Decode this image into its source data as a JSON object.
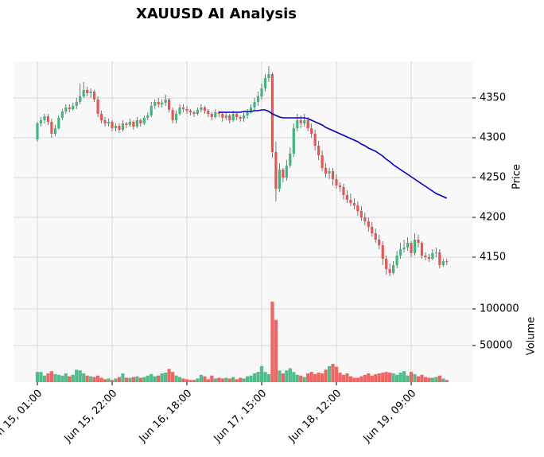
{
  "chart_data": {
    "type": "candlestick",
    "title": "XAUUSD AI Analysis",
    "ylabel": "Price",
    "volume_label": "Volume",
    "ylim": [
      4108,
      4396
    ],
    "yticks": [
      4150,
      4200,
      4250,
      4300,
      4350
    ],
    "volume_ylim": [
      0,
      125000
    ],
    "volume_yticks": [
      50000,
      100000
    ],
    "xlim": [
      -6.7,
      122.2
    ],
    "xticks": [
      {
        "value": 0,
        "label": "Jun 15, 01:00"
      },
      {
        "value": 21,
        "label": "Jun 15, 22:00"
      },
      {
        "value": 42,
        "label": "Jun 16, 18:00"
      },
      {
        "value": 63,
        "label": "Jun 17, 15:00"
      },
      {
        "value": 84,
        "label": "Jun 18, 12:00"
      },
      {
        "value": 105,
        "label": "Jun 19, 09:00"
      }
    ],
    "grid": true,
    "up_color": "#3cb77e",
    "down_color": "#ef5350",
    "open": [
      4298,
      4318,
      4322,
      4327,
      4320,
      4305,
      4312,
      4325,
      4333,
      4338,
      4336,
      4340,
      4345,
      4352,
      4360,
      4356,
      4358,
      4348,
      4330,
      4322,
      4318,
      4320,
      4312,
      4315,
      4310,
      4318,
      4316,
      4320,
      4314,
      4322,
      4318,
      4325,
      4328,
      4340,
      4345,
      4342,
      4344,
      4348,
      4335,
      4322,
      4330,
      4338,
      4336,
      4334,
      4332,
      4330,
      4335,
      4338,
      4334,
      4330,
      4326,
      4332,
      4330,
      4325,
      4328,
      4322,
      4330,
      4326,
      4324,
      4328,
      4332,
      4338,
      4345,
      4352,
      4362,
      4375,
      4380,
      4282,
      4236,
      4260,
      4250,
      4265,
      4280,
      4312,
      4322,
      4318,
      4322,
      4312,
      4305,
      4290,
      4278,
      4262,
      4255,
      4258,
      4248,
      4240,
      4238,
      4228,
      4222,
      4218,
      4215,
      4208,
      4200,
      4195,
      4188,
      4180,
      4172,
      4165,
      4148,
      4135,
      4130,
      4140,
      4152,
      4160,
      4162,
      4168,
      4155,
      4172,
      4168,
      4152,
      4150,
      4148,
      4155,
      4156,
      4140,
      4145
    ],
    "high": [
      4320,
      4326,
      4330,
      4330,
      4324,
      4316,
      4328,
      4336,
      4342,
      4342,
      4344,
      4350,
      4368,
      4370,
      4364,
      4362,
      4360,
      4352,
      4334,
      4326,
      4324,
      4322,
      4318,
      4318,
      4322,
      4320,
      4324,
      4322,
      4326,
      4324,
      4328,
      4332,
      4345,
      4348,
      4350,
      4348,
      4354,
      4350,
      4338,
      4334,
      4342,
      4342,
      4340,
      4336,
      4334,
      4338,
      4342,
      4340,
      4336,
      4332,
      4336,
      4334,
      4332,
      4332,
      4330,
      4334,
      4332,
      4328,
      4332,
      4336,
      4342,
      4350,
      4358,
      4368,
      4380,
      4390,
      4382,
      4295,
      4268,
      4262,
      4272,
      4288,
      4318,
      4330,
      4328,
      4330,
      4326,
      4318,
      4310,
      4296,
      4284,
      4268,
      4262,
      4262,
      4254,
      4244,
      4242,
      4234,
      4230,
      4224,
      4220,
      4214,
      4206,
      4200,
      4194,
      4186,
      4178,
      4170,
      4152,
      4142,
      4145,
      4158,
      4168,
      4172,
      4175,
      4170,
      4180,
      4178,
      4170,
      4156,
      4154,
      4160,
      4162,
      4160,
      4148,
      4148
    ],
    "low": [
      4295,
      4314,
      4318,
      4316,
      4300,
      4302,
      4310,
      4322,
      4330,
      4332,
      4334,
      4336,
      4342,
      4350,
      4352,
      4350,
      4345,
      4326,
      4318,
      4314,
      4314,
      4308,
      4308,
      4306,
      4308,
      4312,
      4314,
      4310,
      4312,
      4314,
      4316,
      4322,
      4326,
      4336,
      4338,
      4338,
      4340,
      4332,
      4318,
      4318,
      4328,
      4332,
      4330,
      4328,
      4326,
      4328,
      4332,
      4330,
      4326,
      4322,
      4324,
      4326,
      4320,
      4322,
      4318,
      4320,
      4322,
      4320,
      4320,
      4324,
      4330,
      4334,
      4340,
      4348,
      4358,
      4370,
      4275,
      4220,
      4232,
      4244,
      4246,
      4262,
      4276,
      4308,
      4312,
      4314,
      4308,
      4300,
      4284,
      4272,
      4258,
      4250,
      4248,
      4240,
      4236,
      4232,
      4222,
      4218,
      4214,
      4210,
      4202,
      4196,
      4190,
      4182,
      4176,
      4168,
      4160,
      4140,
      4128,
      4126,
      4128,
      4136,
      4148,
      4156,
      4158,
      4150,
      4152,
      4162,
      4148,
      4146,
      4144,
      4146,
      4150,
      4136,
      4138,
      4140
    ],
    "close": [
      4318,
      4322,
      4327,
      4320,
      4305,
      4312,
      4325,
      4333,
      4338,
      4336,
      4340,
      4345,
      4352,
      4360,
      4356,
      4358,
      4348,
      4330,
      4322,
      4318,
      4320,
      4312,
      4315,
      4310,
      4318,
      4316,
      4320,
      4314,
      4322,
      4318,
      4325,
      4328,
      4340,
      4345,
      4342,
      4344,
      4348,
      4335,
      4322,
      4330,
      4338,
      4336,
      4334,
      4332,
      4330,
      4335,
      4338,
      4334,
      4330,
      4326,
      4332,
      4330,
      4325,
      4328,
      4322,
      4330,
      4326,
      4324,
      4328,
      4332,
      4338,
      4345,
      4352,
      4362,
      4375,
      4380,
      4282,
      4236,
      4260,
      4250,
      4265,
      4280,
      4312,
      4322,
      4318,
      4322,
      4312,
      4305,
      4290,
      4278,
      4262,
      4255,
      4258,
      4248,
      4240,
      4238,
      4228,
      4222,
      4218,
      4215,
      4208,
      4200,
      4195,
      4188,
      4180,
      4172,
      4165,
      4148,
      4135,
      4130,
      4140,
      4152,
      4160,
      4162,
      4168,
      4155,
      4172,
      4168,
      4152,
      4150,
      4148,
      4155,
      4156,
      4140,
      4145,
      4144
    ],
    "volume": [
      14000,
      14000,
      9000,
      12000,
      15000,
      11000,
      10000,
      9000,
      12000,
      8000,
      10000,
      17000,
      16000,
      12000,
      9000,
      8000,
      7000,
      9000,
      6000,
      4000,
      5000,
      3000,
      5000,
      7000,
      12000,
      6000,
      6000,
      7000,
      8000,
      6000,
      7000,
      9000,
      11000,
      8000,
      9000,
      12000,
      13000,
      18000,
      14000,
      9000,
      7000,
      5000,
      4000,
      3000,
      3000,
      5000,
      10000,
      8000,
      4000,
      9000,
      5000,
      6000,
      5000,
      6000,
      5000,
      7000,
      4000,
      6000,
      5000,
      8000,
      9000,
      12000,
      14000,
      22000,
      14000,
      11000,
      110000,
      85000,
      16000,
      12000,
      16000,
      19000,
      14000,
      10000,
      9000,
      7000,
      12000,
      14000,
      11000,
      13000,
      12000,
      17000,
      22000,
      25000,
      21000,
      13000,
      10000,
      12000,
      8000,
      6000,
      6000,
      8000,
      10000,
      12000,
      9000,
      11000,
      12000,
      13000,
      14000,
      13000,
      12000,
      10000,
      13000,
      15000,
      9000,
      14000,
      11000,
      8000,
      10000,
      7000,
      6000,
      6000,
      7000,
      9000,
      5000,
      3000
    ],
    "moving_average": {
      "color": "#0000c8",
      "values": [
        null,
        null,
        null,
        null,
        null,
        null,
        null,
        null,
        null,
        null,
        null,
        null,
        null,
        null,
        null,
        null,
        null,
        null,
        null,
        null,
        null,
        null,
        null,
        null,
        null,
        null,
        null,
        null,
        null,
        null,
        null,
        null,
        null,
        null,
        null,
        null,
        null,
        null,
        null,
        null,
        null,
        null,
        null,
        null,
        null,
        null,
        null,
        null,
        null,
        null,
        null,
        4332,
        4332,
        4332,
        4332,
        4332,
        4332,
        4332,
        4333,
        4333,
        4333,
        4334,
        4334,
        4335,
        4335,
        4333,
        4330,
        4328,
        4326,
        4325,
        4325,
        4325,
        4325,
        4325,
        4325,
        4325,
        4324,
        4322,
        4320,
        4318,
        4316,
        4313,
        4311,
        4309,
        4307,
        4305,
        4303,
        4301,
        4299,
        4297,
        4295,
        4292,
        4290,
        4287,
        4285,
        4283,
        4280,
        4277,
        4273,
        4270,
        4266,
        4263,
        4260,
        4257,
        4254,
        4251,
        4248,
        4245,
        4242,
        4239,
        4236,
        4233,
        4230,
        4228,
        4226,
        4224
      ]
    }
  }
}
